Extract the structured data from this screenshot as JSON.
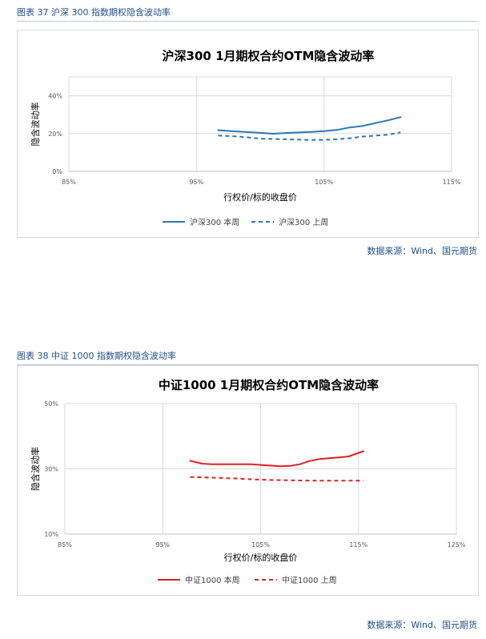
{
  "captions": {
    "fig37": "图表 37  沪深 300 指数期权隐含波动率",
    "fig38": "图表 38  中证 1000 指数期权隐含波动率"
  },
  "sources": {
    "fig37": "数据来源：Wind、国元期货",
    "fig38": "数据来源：Wind、国元期货"
  },
  "colors": {
    "hs300": "#2e75b6",
    "zz1000": "#e02020",
    "caption": "#1f4e8c",
    "grid": "#d9d9d9"
  },
  "chart_data": [
    {
      "type": "line",
      "title": "沪深300 1月期权合约OTM隐含波动率",
      "xlabel": "行权价/标的收盘价",
      "ylabel": "隐含波动率",
      "x_ticks": [
        "85%",
        "95%",
        "105%",
        "115%"
      ],
      "y_ticks": [
        "0%",
        "20%",
        "40%"
      ],
      "xlim": [
        0.85,
        1.15
      ],
      "ylim": [
        0,
        0.5
      ],
      "grid": true,
      "legend_position": "bottom",
      "series": [
        {
          "name": "沪深300 本周",
          "style": "solid",
          "x": [
            0.967,
            0.98,
            1.0,
            1.01,
            1.02,
            1.04,
            1.05,
            1.06,
            1.07,
            1.08,
            1.09,
            1.1,
            1.11
          ],
          "y": [
            0.218,
            0.212,
            0.204,
            0.199,
            0.203,
            0.209,
            0.213,
            0.219,
            0.232,
            0.24,
            0.255,
            0.27,
            0.287
          ]
        },
        {
          "name": "沪深300 上周",
          "style": "dashed",
          "x": [
            0.967,
            0.98,
            0.99,
            1.0,
            1.02,
            1.04,
            1.05,
            1.06,
            1.07,
            1.08,
            1.09,
            1.1,
            1.11
          ],
          "y": [
            0.19,
            0.185,
            0.18,
            0.173,
            0.17,
            0.166,
            0.167,
            0.17,
            0.175,
            0.184,
            0.189,
            0.194,
            0.206
          ]
        }
      ]
    },
    {
      "type": "line",
      "title": "中证1000 1月期权合约OTM隐含波动率",
      "xlabel": "行权价/标的收盘价",
      "ylabel": "隐含波动率",
      "x_ticks": [
        "85%",
        "95%",
        "105%",
        "115%",
        "125%"
      ],
      "y_ticks": [
        "10%",
        "30%",
        "50%"
      ],
      "xlim": [
        0.85,
        1.25
      ],
      "ylim": [
        0.1,
        0.5
      ],
      "grid": true,
      "legend_position": "bottom",
      "series": [
        {
          "name": "中证1000  本周",
          "style": "solid",
          "x": [
            0.978,
            0.99,
            1.0,
            1.02,
            1.04,
            1.05,
            1.06,
            1.07,
            1.08,
            1.09,
            1.1,
            1.11,
            1.13,
            1.14,
            1.155
          ],
          "y": [
            0.325,
            0.316,
            0.314,
            0.314,
            0.314,
            0.312,
            0.31,
            0.308,
            0.309,
            0.314,
            0.324,
            0.33,
            0.335,
            0.338,
            0.354
          ]
        },
        {
          "name": "中证1000  上周",
          "style": "dashed",
          "x": [
            0.978,
            1.0,
            1.02,
            1.04,
            1.06,
            1.08,
            1.1,
            1.12,
            1.14,
            1.155
          ],
          "y": [
            0.275,
            0.273,
            0.271,
            0.268,
            0.266,
            0.265,
            0.264,
            0.264,
            0.264,
            0.264
          ]
        }
      ]
    }
  ]
}
